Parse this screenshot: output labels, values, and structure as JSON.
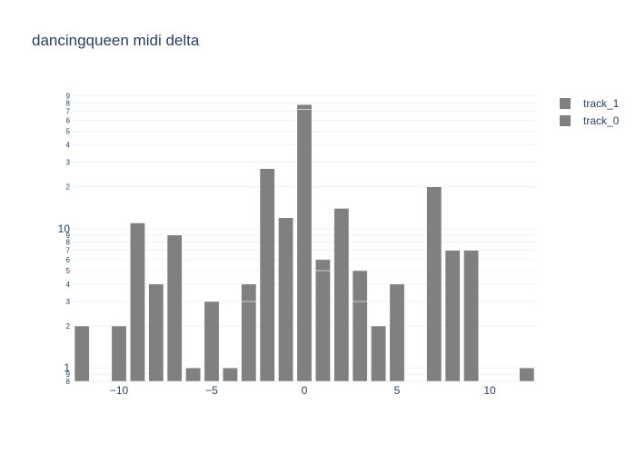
{
  "chart_data": {
    "type": "bar",
    "title": "dancingqueen midi delta",
    "xlabel": "",
    "ylabel": "",
    "barmode": "stack",
    "y_scale": "log",
    "xlim": [
      -12.5,
      12.5
    ],
    "ylim": [
      0.8,
      95
    ],
    "x": [
      -12,
      -10,
      -9,
      -8,
      -7,
      -6,
      -5,
      -4,
      -3,
      -2,
      -1,
      0,
      1,
      2,
      3,
      4,
      5,
      7,
      8,
      9,
      12
    ],
    "series": [
      {
        "name": "track_0",
        "color": "#808080",
        "values": [
          2,
          2,
          11,
          4,
          9,
          1,
          3,
          1,
          3,
          27,
          12,
          72,
          5,
          14,
          3,
          2,
          4,
          20,
          7,
          7,
          1
        ]
      },
      {
        "name": "track_1",
        "color": "#808080",
        "values": [
          0,
          0,
          0,
          0,
          0,
          0,
          0,
          0,
          1,
          0,
          0,
          6,
          1,
          0,
          2,
          0,
          0,
          0,
          0,
          0,
          0
        ]
      }
    ],
    "x_ticks": [
      "−10",
      "−5",
      "0",
      "5",
      "10"
    ],
    "x_tick_values": [
      -10,
      -5,
      0,
      5,
      10
    ],
    "y_ticks": [
      {
        "v": 0.8,
        "t": "8"
      },
      {
        "v": 0.9,
        "t": "9"
      },
      {
        "v": 1,
        "t": "1"
      },
      {
        "v": 2,
        "t": "2"
      },
      {
        "v": 3,
        "t": "3"
      },
      {
        "v": 4,
        "t": "4"
      },
      {
        "v": 5,
        "t": "5"
      },
      {
        "v": 6,
        "t": "6"
      },
      {
        "v": 7,
        "t": "7"
      },
      {
        "v": 8,
        "t": "8"
      },
      {
        "v": 9,
        "t": "9"
      },
      {
        "v": 10,
        "t": "10"
      },
      {
        "v": 20,
        "t": "2"
      },
      {
        "v": 30,
        "t": "3"
      },
      {
        "v": 40,
        "t": "4"
      },
      {
        "v": 50,
        "t": "5"
      },
      {
        "v": 60,
        "t": "6"
      },
      {
        "v": 70,
        "t": "7"
      },
      {
        "v": 80,
        "t": "8"
      },
      {
        "v": 90,
        "t": "9"
      }
    ],
    "legend": [
      "track_1",
      "track_0"
    ],
    "legend_position": "top-right",
    "grid": true
  }
}
